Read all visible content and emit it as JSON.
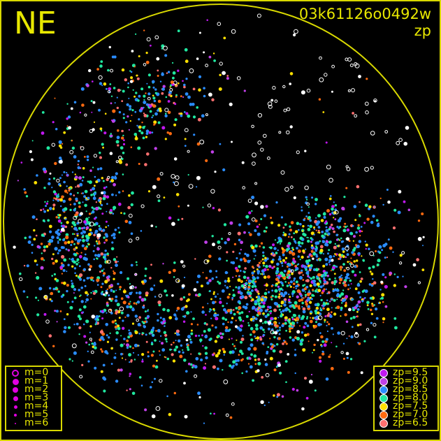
{
  "direction_label": "NE",
  "frame_id": "03k61126o0492w",
  "mode_label": "zp",
  "magnitude_legend": [
    {
      "label": "m=0",
      "style": "ring"
    },
    {
      "label": "m=1"
    },
    {
      "label": "m=2"
    },
    {
      "label": "m=3"
    },
    {
      "label": "m=4"
    },
    {
      "label": "m=5"
    },
    {
      "label": "m=6"
    }
  ],
  "zp_legend": [
    {
      "label": "zp=9.5",
      "color": "#c018f0"
    },
    {
      "label": "zp=9.0",
      "color": "#c040e8"
    },
    {
      "label": "zp=8.5",
      "color": "#2a8cff"
    },
    {
      "label": "zp=8.0",
      "color": "#20e8a0"
    },
    {
      "label": "zp=7.5",
      "color": "#ffe000"
    },
    {
      "label": "zp=7.0",
      "color": "#ff6a10"
    },
    {
      "label": "zp=6.5",
      "color": "#ff7070"
    }
  ],
  "colors": {
    "frame": "#d8d800",
    "background": "#000000",
    "magnitude_marker": "#e000e0",
    "unmeasured_star": "#ffffff"
  }
}
